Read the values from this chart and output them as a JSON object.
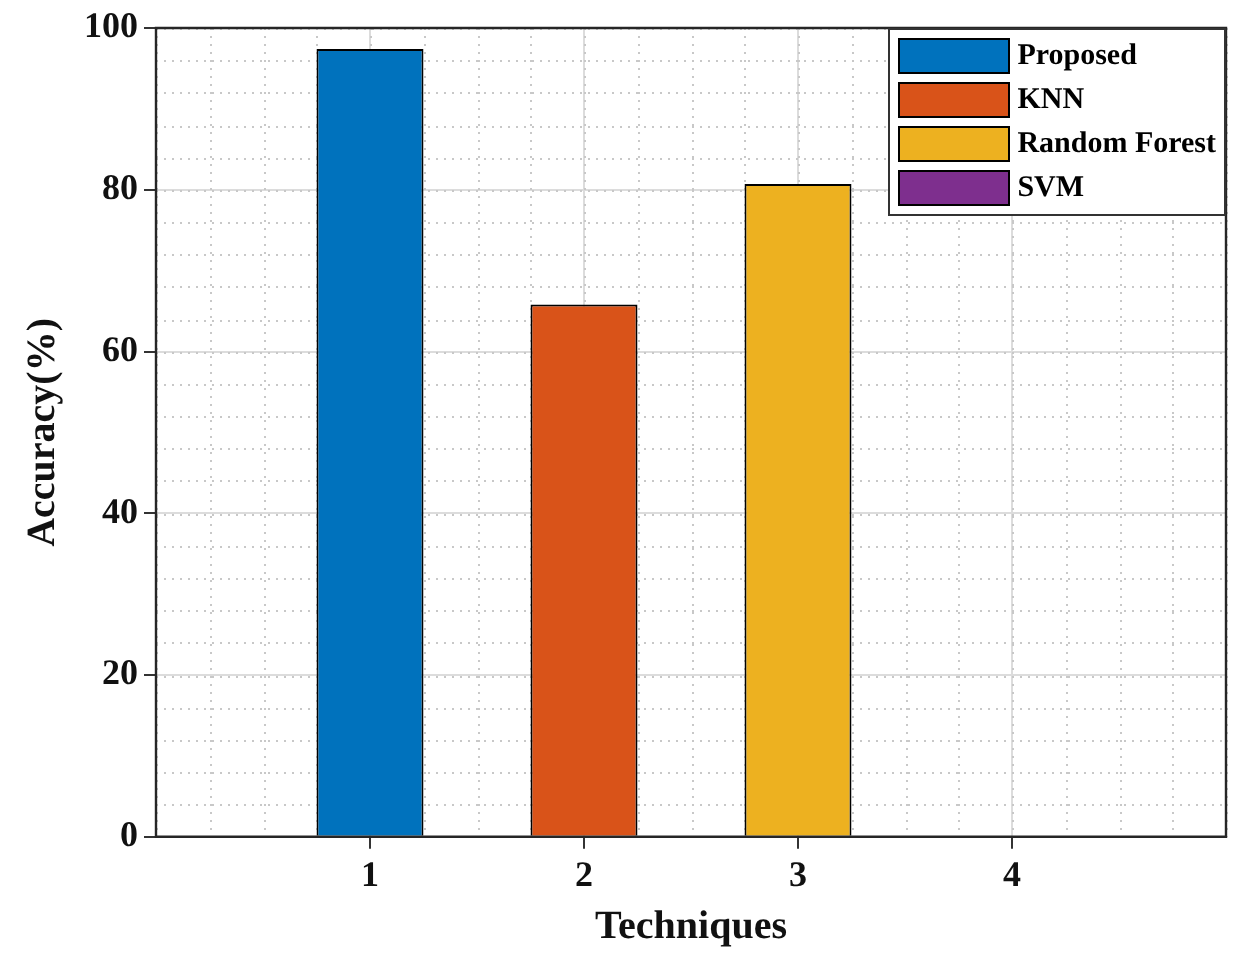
{
  "chart_data": {
    "type": "bar",
    "xlabel": "Techniques",
    "ylabel": "Accuracy(%)",
    "series": [
      {
        "name": "Proposed",
        "color": "#0072bd",
        "x": [
          1
        ],
        "values": [
          97.4
        ]
      },
      {
        "name": "KNN",
        "color": "#d95319",
        "x": [
          2
        ],
        "values": [
          65.8
        ]
      },
      {
        "name": "Random Forest",
        "color": "#edb120",
        "x": [
          3
        ],
        "values": [
          80.7
        ]
      },
      {
        "name": "SVM",
        "color": "#7e2f8e",
        "values": [
          null
        ]
      }
    ],
    "xlim": [
      0,
      5
    ],
    "xticks": [
      1,
      2,
      3,
      4
    ],
    "ylim": [
      0,
      100
    ],
    "yticks": [
      0,
      20,
      40,
      60,
      80,
      100
    ],
    "grid": true,
    "legend": "top right"
  }
}
